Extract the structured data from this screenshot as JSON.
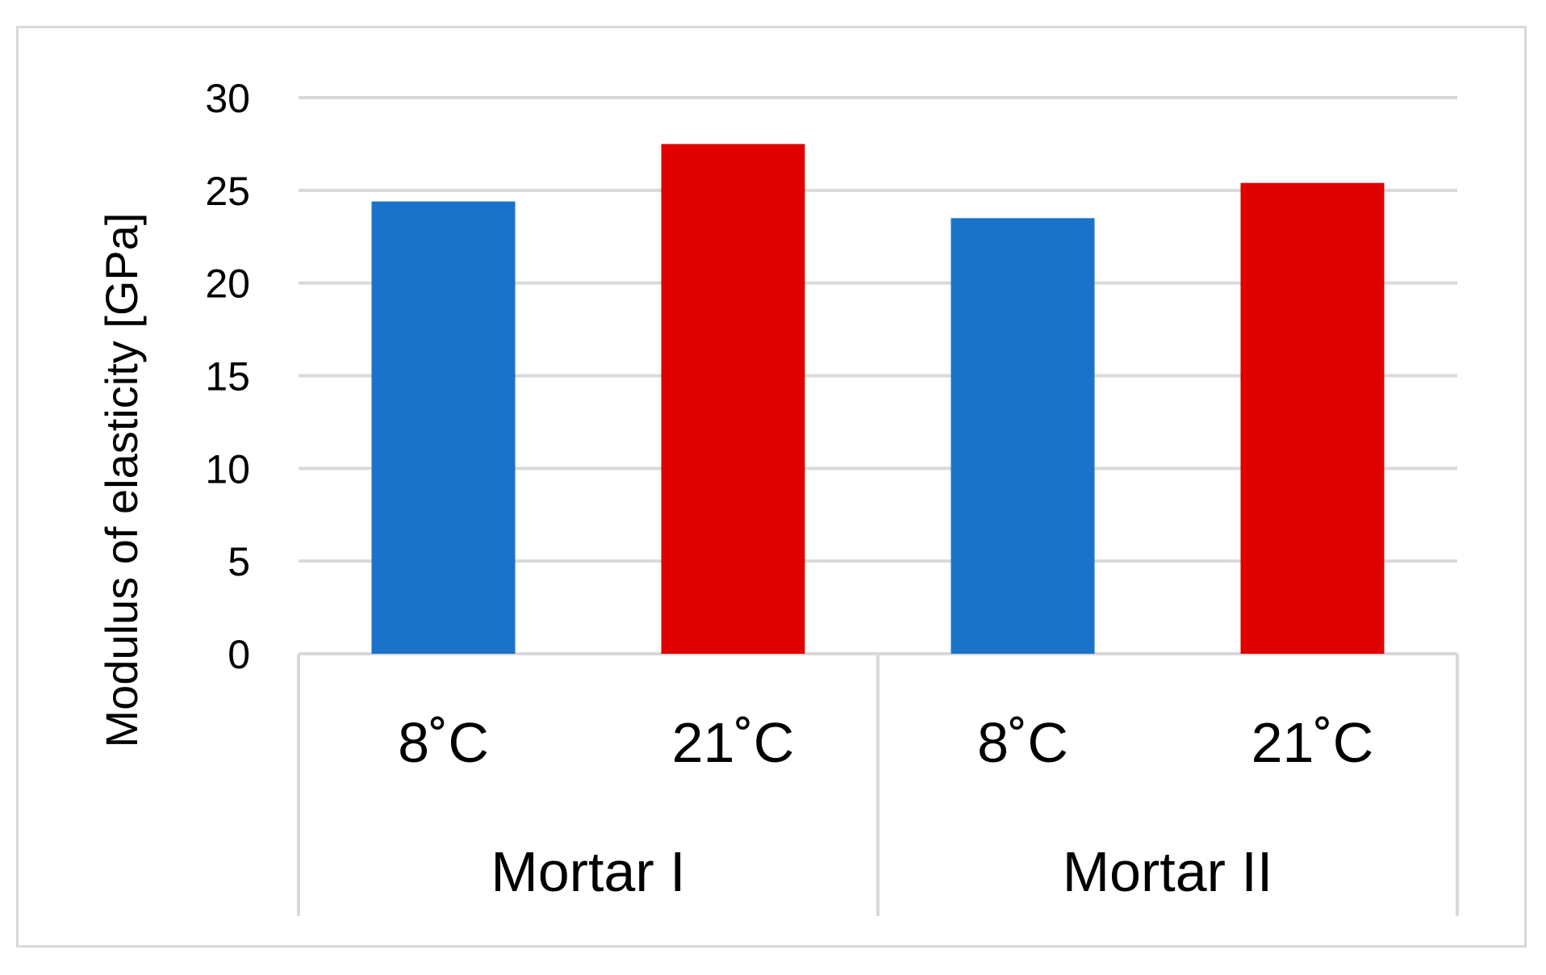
{
  "chart_data": {
    "type": "bar",
    "ylabel": "Modulus of elasticity [GPa]",
    "xlabel": "",
    "ylim": [
      0,
      30
    ],
    "yticks": [
      0,
      5,
      10,
      15,
      20,
      25,
      30
    ],
    "grid": true,
    "groups": [
      {
        "label": "Mortar I",
        "bars": [
          {
            "label": "8˚C",
            "value": 24.4,
            "color": "#1a73c8"
          },
          {
            "label": "21˚C",
            "value": 27.5,
            "color": "#e00000"
          }
        ]
      },
      {
        "label": "Mortar II",
        "bars": [
          {
            "label": "8˚C",
            "value": 23.5,
            "color": "#1a73c8"
          },
          {
            "label": "21˚C",
            "value": 25.4,
            "color": "#e00000"
          }
        ]
      }
    ],
    "gridline_color": "#d9d9d9",
    "axis_color": "#d9d9d9"
  }
}
